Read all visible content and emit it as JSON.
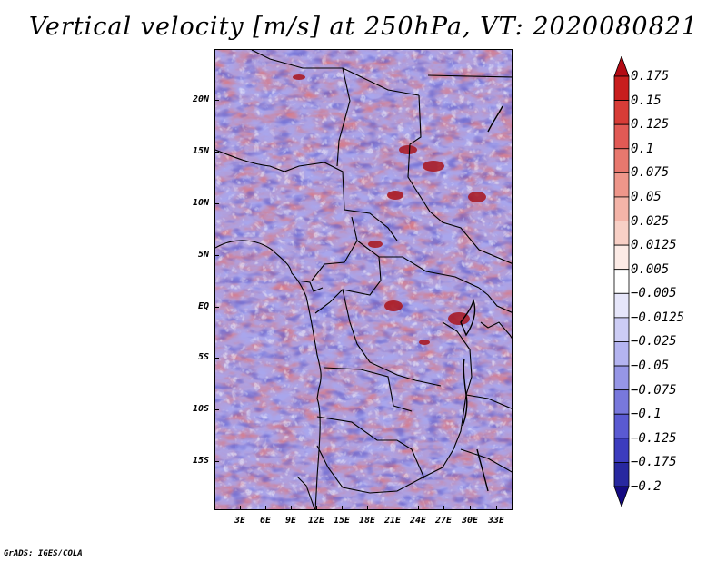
{
  "title": "Vertical velocity [m/s] at 250hPa, VT: 2020080821",
  "map": {
    "latitude_labels": [
      "20N",
      "15N",
      "10N",
      "5N",
      "EQ",
      "5S",
      "10S",
      "15S"
    ],
    "longitude_labels": [
      "3E",
      "6E",
      "9E",
      "12E",
      "15E",
      "18E",
      "21E",
      "24E",
      "27E",
      "30E",
      "33E"
    ]
  },
  "colorbar": {
    "labels": [
      "0.175",
      "0.15",
      "0.125",
      "0.1",
      "0.075",
      "0.05",
      "0.025",
      "0.0125",
      "0.005",
      "−0.005",
      "−0.0125",
      "−0.025",
      "−0.05",
      "−0.075",
      "−0.1",
      "−0.125",
      "−0.175",
      "−0.2"
    ],
    "colors": [
      "#b40a14",
      "#c81e1e",
      "#d73c37",
      "#e15a55",
      "#e8786e",
      "#ee968a",
      "#f4b4a8",
      "#f8d0c6",
      "#fcebe6",
      "#ffffff",
      "#e6e6fa",
      "#cdcdf5",
      "#b4b4f0",
      "#9696e6",
      "#7878dc",
      "#5a5ad2",
      "#3c3cbe",
      "#2828a0",
      "#140a82"
    ]
  },
  "credit": "GrADS: IGES/COLA"
}
